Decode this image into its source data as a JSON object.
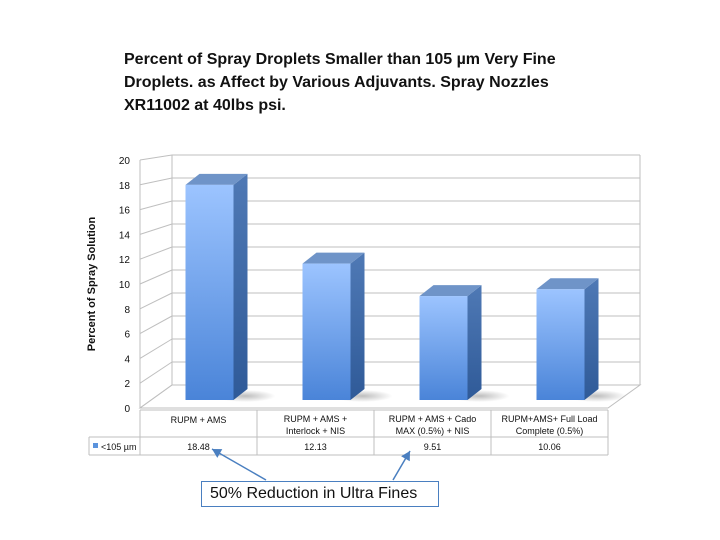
{
  "chart_data": {
    "type": "bar",
    "title": "Percent of Spray Droplets Smaller than 105 µm Very Fine Droplets. as Affect by Various Adjuvants. Spray Nozzles XR11002 at 40lbs psi.",
    "ylabel": "Percent of Spray Solution",
    "xlabel": "",
    "ylim": [
      0,
      20
    ],
    "yticks": [
      0,
      2,
      4,
      6,
      8,
      10,
      12,
      14,
      16,
      18,
      20
    ],
    "grid": true,
    "categories": [
      [
        "RUPM + AMS"
      ],
      [
        "RUPM + AMS +",
        "Interlock + NIS"
      ],
      [
        "RUPM + AMS + Cado",
        "MAX (0.5%) + NIS"
      ],
      [
        "RUPM+AMS+ Full Load",
        "Complete (0.5%)"
      ]
    ],
    "series": [
      {
        "name": "<105 µm",
        "values": [
          18.48,
          12.13,
          9.51,
          10.06
        ],
        "color": "#5b93dd"
      }
    ],
    "data_table": {
      "values": [
        "18.48",
        "12.13",
        "9.51",
        "10.06"
      ]
    },
    "legend": "in data table"
  },
  "annotation": {
    "text": "50% Reduction in Ultra Fines",
    "arrow_color": "#4a7fc0"
  }
}
